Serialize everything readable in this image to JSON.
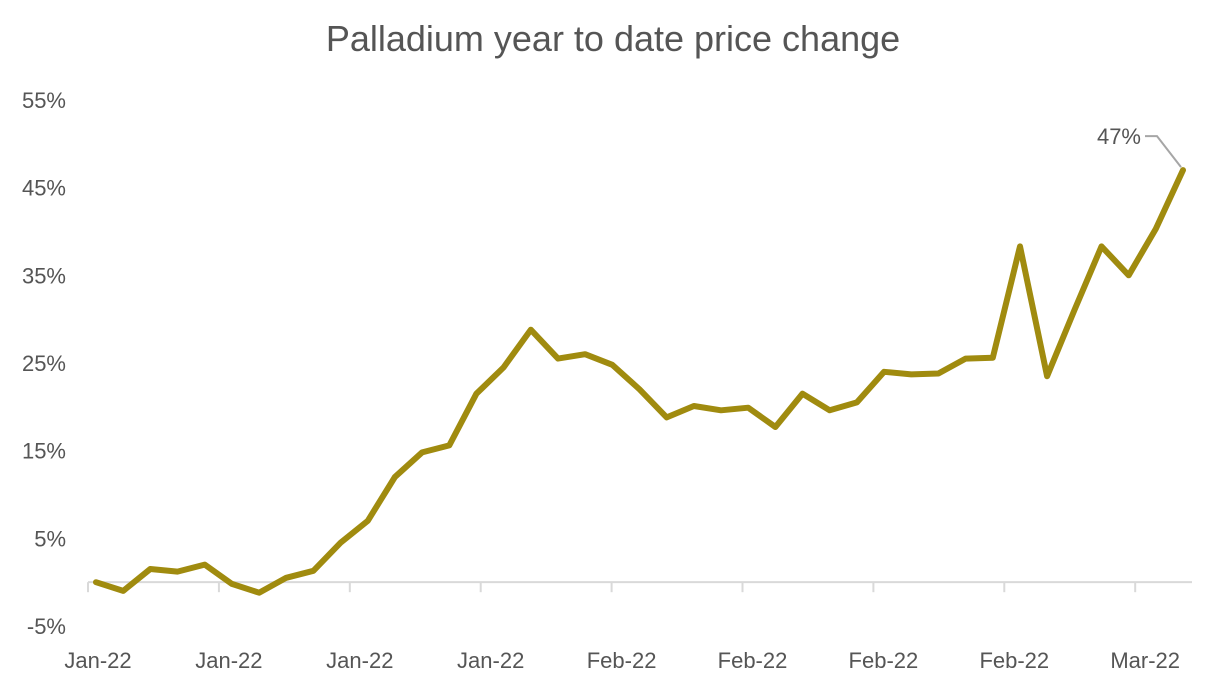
{
  "chart_data": {
    "type": "line",
    "title": "Palladium year to date price change",
    "xlabel": "",
    "ylabel": "",
    "ylim": [
      -5,
      55
    ],
    "y_ticks": [
      -5,
      5,
      15,
      25,
      35,
      45,
      55
    ],
    "y_tick_format": "%",
    "x_tick_labels": [
      "Jan-22",
      "Jan-22",
      "Jan-22",
      "Jan-22",
      "Feb-22",
      "Feb-22",
      "Feb-22",
      "Feb-22",
      "Mar-22"
    ],
    "grid": false,
    "legend": "none",
    "line_color": "#a08b0f",
    "series": [
      {
        "values": [
          0,
          -1,
          1.5,
          1.2,
          2,
          -0.2,
          -1.2,
          0.5,
          1.3,
          4.5,
          7,
          12,
          14.8,
          15.6,
          21.5,
          24.5,
          28.8,
          25.5,
          26,
          24.8,
          22,
          18.8,
          20.1,
          19.6,
          19.9,
          17.7,
          21.5,
          19.6,
          20.5,
          24,
          23.7,
          23.8,
          25.5,
          25.6,
          38.3,
          23.5,
          31,
          38.3,
          35,
          40.3,
          47
        ]
      }
    ],
    "annotation": {
      "text": "47%"
    }
  }
}
